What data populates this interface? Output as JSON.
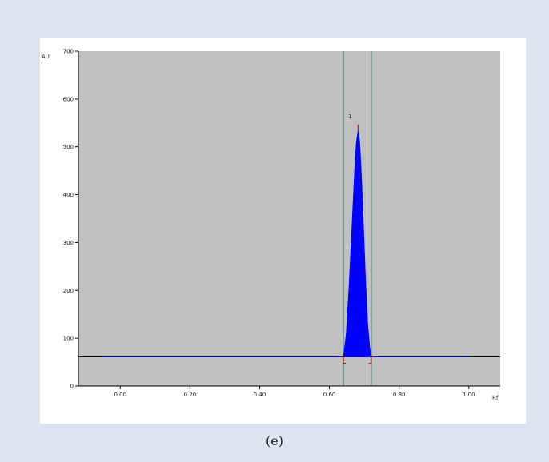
{
  "caption": "(e)",
  "chart_data": {
    "type": "area",
    "xlabel": "Rf",
    "ylabel": "AU",
    "xlim": [
      -0.12,
      1.09
    ],
    "ylim": [
      0,
      700
    ],
    "x_ticks": [
      0.0,
      0.2,
      0.4,
      0.6,
      0.8,
      1.0
    ],
    "x_tick_labels": [
      "0.00",
      "0.20",
      "0.40",
      "0.60",
      "0.80",
      "1.00"
    ],
    "y_ticks": [
      0,
      100,
      200,
      300,
      400,
      500,
      600,
      700
    ],
    "y_tick_labels": [
      "0",
      "100",
      "200",
      "300",
      "400",
      "500",
      "600",
      "700"
    ],
    "baseline": 61,
    "baseline_range": [
      -0.05,
      1.0
    ],
    "grid": false,
    "background_color": "#c0c0c0",
    "peak_color": "#0000ff",
    "baseline_color": "#0000cc",
    "marker_color": "#cc0000",
    "window_line_color": "#5f8f8f",
    "integration_window": [
      0.64,
      0.72
    ],
    "peaks": [
      {
        "label": "1",
        "start": 0.64,
        "apex": 0.682,
        "end": 0.72,
        "height": 535,
        "profile": [
          [
            0.64,
            61
          ],
          [
            0.648,
            110
          ],
          [
            0.656,
            210
          ],
          [
            0.664,
            330
          ],
          [
            0.672,
            450
          ],
          [
            0.677,
            510
          ],
          [
            0.682,
            535
          ],
          [
            0.687,
            510
          ],
          [
            0.692,
            440
          ],
          [
            0.698,
            330
          ],
          [
            0.704,
            220
          ],
          [
            0.71,
            130
          ],
          [
            0.716,
            80
          ],
          [
            0.72,
            61
          ]
        ]
      }
    ]
  }
}
